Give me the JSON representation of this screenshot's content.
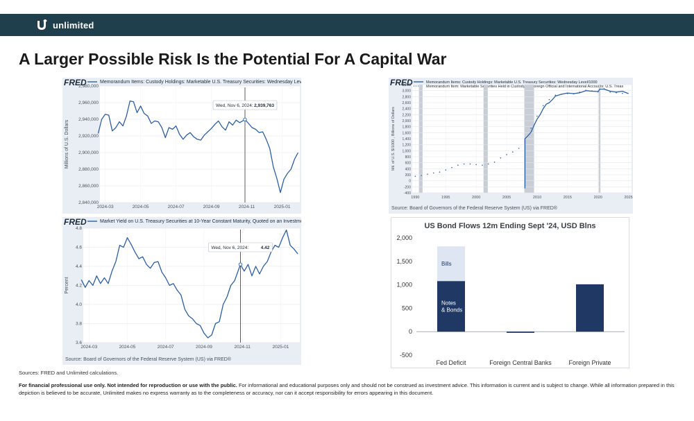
{
  "brand": {
    "name": "unlimited"
  },
  "slide": {
    "title": "A Larger Possible Risk Is the Potential For A Capital War"
  },
  "footer": {
    "sources": "Sources: FRED and Unlimited calculations.",
    "disclaimer_bold": "For financial professional use only.  Not intended for reproduction or use with the public.",
    "disclaimer_rest": " For informational and educational purposes only and should not be construed as investment advice. This information is current and is subject to change. While all information prepared in this depiction is believed to be accurate, Unlimited makes no express warranty as to the completeness or accuracy, nor can it accept responsibility for errors appearing in this document."
  },
  "colors": {
    "brand_bar": "#1f3f4d",
    "fred_line": "#2b5ea7",
    "notes_bonds": "#1f3864",
    "bills": "#dde6f2",
    "recession": "#c9ced6"
  },
  "chart_data": [
    {
      "id": "custody",
      "type": "line",
      "logo": "FRED",
      "legend": "Memorandum Items: Custody Holdings: Marketable U.S. Treasury Securities: Wednesday Level",
      "ylabel": "Millions of U.S. Dollars",
      "ylim": [
        2840000,
        2980000
      ],
      "yticks": [
        2840000,
        2860000,
        2880000,
        2900000,
        2920000,
        2940000,
        2960000,
        2980000
      ],
      "ytick_labels": [
        "2,840,000",
        "2,860,000",
        "2,880,000",
        "2,900,000",
        "2,920,000",
        "2,940,000",
        "2,960,000",
        "2,980,000"
      ],
      "xlim": [
        0,
        11.3
      ],
      "xtick_pos": [
        0.3,
        2.3,
        4.3,
        6.3,
        8.3,
        10.3
      ],
      "xtick_labels": [
        "2024-03",
        "2024-05",
        "2024-07",
        "2024-09",
        "2024-11",
        "2025-01"
      ],
      "marker_x": 8.2,
      "tooltip": {
        "date": "Wed, Nov 6, 2024:",
        "value": "2,939,763"
      },
      "x": [
        -0.1,
        0.1,
        0.3,
        0.5,
        0.7,
        0.9,
        1.1,
        1.3,
        1.5,
        1.7,
        1.9,
        2.1,
        2.3,
        2.5,
        2.7,
        2.9,
        3.1,
        3.3,
        3.5,
        3.7,
        3.9,
        4.1,
        4.3,
        4.5,
        4.7,
        4.9,
        5.1,
        5.3,
        5.5,
        5.7,
        5.9,
        6.1,
        6.3,
        6.5,
        6.7,
        6.9,
        7.1,
        7.3,
        7.5,
        7.7,
        7.9,
        8.2,
        8.4,
        8.6,
        8.8,
        9.0,
        9.2,
        9.4,
        9.6,
        9.8,
        10.0,
        10.2,
        10.4,
        10.6,
        10.8,
        11.0,
        11.2
      ],
      "y": [
        2923000,
        2940000,
        2946000,
        2945000,
        2926000,
        2930000,
        2937000,
        2932000,
        2944000,
        2962000,
        2961000,
        2948000,
        2956000,
        2947000,
        2944000,
        2935000,
        2938000,
        2937000,
        2930000,
        2918000,
        2930000,
        2928000,
        2932000,
        2922000,
        2916000,
        2921000,
        2924000,
        2919000,
        2916000,
        2915000,
        2921000,
        2925000,
        2929000,
        2934000,
        2938000,
        2931000,
        2927000,
        2937000,
        2933000,
        2939000,
        2936000,
        2939763,
        2935000,
        2930000,
        2928000,
        2924000,
        2925000,
        2916000,
        2905000,
        2883000,
        2869000,
        2852000,
        2868000,
        2875000,
        2880000,
        2892000,
        2900000
      ]
    },
    {
      "id": "custody_long",
      "type": "line",
      "logo": "FRED",
      "legend": [
        "Memorandum Items: Custody Holdings: Marketable U.S. Treasury Securities: Wednesday Level/1000",
        "Memorandum Item: Marketable Securities Held in Custody for Foreign Official and International Accounts: U.S. Treas"
      ],
      "ylabel": "Mil. of U.S. $/1000 , Billions of Dollars",
      "ylim": [
        -400,
        3200
      ],
      "yticks": [
        -400,
        -200,
        0,
        200,
        400,
        600,
        800,
        1000,
        1200,
        1400,
        1600,
        1800,
        2000,
        2200,
        2400,
        2600,
        2800,
        3000,
        3200
      ],
      "ytick_labels": [
        "-400",
        "-200",
        "0",
        "200",
        "400",
        "600",
        "800",
        "1,000",
        "1,200",
        "1,400",
        "1,600",
        "1,800",
        "2,000",
        "2,200",
        "2,400",
        "2,600",
        "2,800",
        "3,000",
        "3,200"
      ],
      "xlim": [
        1989.5,
        2025.5
      ],
      "xticks": [
        1990,
        1995,
        2000,
        2005,
        2010,
        2015,
        2020,
        2025
      ],
      "recessions": [
        [
          1990.6,
          1991.2
        ],
        [
          2001.2,
          2001.9
        ],
        [
          2007.9,
          2009.5
        ],
        [
          2020.1,
          2020.4
        ]
      ],
      "source": "Source: Board of Governors of the Federal Reserve System (US) via FRED®",
      "series": [
        {
          "name": "Memorandum Items: Custody Holdings: Marketable U.S. Treasury Securities: Wednesday Level/1000",
          "style": "solid",
          "x": [
            2008.0,
            2008.0,
            2008.5,
            2009.0,
            2009.5,
            2010.0,
            2010.5,
            2011.0,
            2011.5,
            2012.0,
            2012.5,
            2013.0,
            2014.0,
            2015.0,
            2016.0,
            2017.0,
            2018.0,
            2019.0,
            2020.0,
            2020.3,
            2021.0,
            2022.0,
            2023.0,
            2024.0,
            2025.0
          ],
          "y": [
            -250,
            1400,
            1500,
            1620,
            1850,
            2050,
            2200,
            2400,
            2550,
            2600,
            2700,
            2820,
            2880,
            2920,
            2900,
            2930,
            3000,
            2980,
            2970,
            3050,
            3050,
            2980,
            2950,
            2980,
            2900
          ]
        },
        {
          "name": "Memorandum Item: Marketable Securities Held in Custody for Foreign Official and International Accounts: U.S. Treas",
          "style": "dotted",
          "x": [
            1990.0,
            1991.0,
            1992.0,
            1993.0,
            1994.0,
            1995.0,
            1996.0,
            1997.0,
            1998.0,
            1999.0,
            2000.0,
            2001.0,
            2002.0,
            2003.0,
            2004.0,
            2005.0,
            2006.0,
            2007.0,
            2008.0,
            2009.0,
            2010.0,
            2011.0,
            2012.0,
            2013.0,
            2014.0,
            2015.0,
            2016.0,
            2017.0,
            2018.0,
            2019.0,
            2020.0,
            2021.0,
            2022.0,
            2023.0,
            2024.0
          ],
          "y": [
            150,
            180,
            220,
            260,
            290,
            360,
            440,
            520,
            560,
            560,
            540,
            520,
            560,
            620,
            760,
            870,
            960,
            1080,
            1300,
            1750,
            2150,
            2500,
            2700,
            2850,
            2880,
            2900,
            2890,
            2950,
            3010,
            2990,
            2960,
            3060,
            2950,
            2930,
            2910
          ]
        }
      ]
    },
    {
      "id": "yield10y",
      "type": "line",
      "logo": "FRED",
      "legend": "Market Yield on U.S. Treasury Securities at 10-Year Constant Maturity, Quoted on an Investment Basis",
      "ylabel": "Percent",
      "ylim": [
        3.6,
        4.8
      ],
      "yticks": [
        3.6,
        3.8,
        4.0,
        4.2,
        4.4,
        4.6,
        4.8
      ],
      "ytick_labels": [
        "3.6",
        "3.8",
        "4.0",
        "4.2",
        "4.4",
        "4.6",
        "4.8"
      ],
      "xlim": [
        0,
        11.3
      ],
      "xtick_pos": [
        0.3,
        2.3,
        4.3,
        6.3,
        8.3,
        10.3
      ],
      "xtick_labels": [
        "2024-03",
        "2024-05",
        "2024-07",
        "2024-09",
        "2024-11",
        "2025-01"
      ],
      "marker_x": 8.2,
      "tooltip": {
        "date": "Wed, Nov 6, 2024:",
        "value": "4.42"
      },
      "source": "Source: Board of Governors of the Federal Reserve System (US) via FRED®",
      "x": [
        -0.1,
        0.1,
        0.3,
        0.5,
        0.7,
        0.9,
        1.1,
        1.3,
        1.5,
        1.7,
        1.9,
        2.1,
        2.3,
        2.5,
        2.7,
        2.9,
        3.1,
        3.3,
        3.5,
        3.7,
        3.9,
        4.1,
        4.3,
        4.5,
        4.7,
        4.9,
        5.1,
        5.3,
        5.5,
        5.7,
        5.9,
        6.1,
        6.3,
        6.5,
        6.7,
        6.9,
        7.1,
        7.3,
        7.5,
        7.7,
        7.9,
        8.2,
        8.4,
        8.6,
        8.8,
        9.0,
        9.2,
        9.4,
        9.6,
        9.8,
        10.0,
        10.2,
        10.4,
        10.6,
        10.8,
        11.0,
        11.2
      ],
      "y": [
        4.26,
        4.18,
        4.25,
        4.2,
        4.3,
        4.22,
        4.28,
        4.22,
        4.35,
        4.45,
        4.62,
        4.6,
        4.7,
        4.63,
        4.55,
        4.48,
        4.5,
        4.42,
        4.38,
        4.44,
        4.45,
        4.34,
        4.28,
        4.2,
        4.22,
        4.15,
        4.1,
        3.95,
        3.88,
        3.85,
        3.8,
        3.78,
        3.7,
        3.65,
        3.68,
        3.8,
        3.82,
        4.0,
        4.08,
        4.2,
        4.25,
        4.42,
        4.35,
        4.42,
        4.3,
        4.4,
        4.32,
        4.4,
        4.45,
        4.55,
        4.62,
        4.6,
        4.7,
        4.78,
        4.62,
        4.58,
        4.53
      ]
    },
    {
      "id": "bond_flows",
      "type": "bar",
      "title": "US Bond Flows 12m Ending Sept '24, USD Blns",
      "categories": [
        "Fed Deficit",
        "Foreign Central Banks",
        "Foreign Private"
      ],
      "ylim": [
        -500,
        2000
      ],
      "yticks": [
        -500,
        0,
        500,
        1000,
        1500,
        2000
      ],
      "ytick_labels": [
        "-500",
        "0",
        "500",
        "1,000",
        "1,500",
        "2,000"
      ],
      "series": [
        {
          "name": "Notes & Bonds",
          "label_lines": [
            "Notes",
            "& Bonds"
          ],
          "color": "#1f3864",
          "values": [
            1080,
            -25,
            1010
          ]
        },
        {
          "name": "Bills",
          "label_lines": [
            "Bills"
          ],
          "color": "#dde6f2",
          "values": [
            740,
            0,
            0
          ]
        }
      ]
    }
  ]
}
